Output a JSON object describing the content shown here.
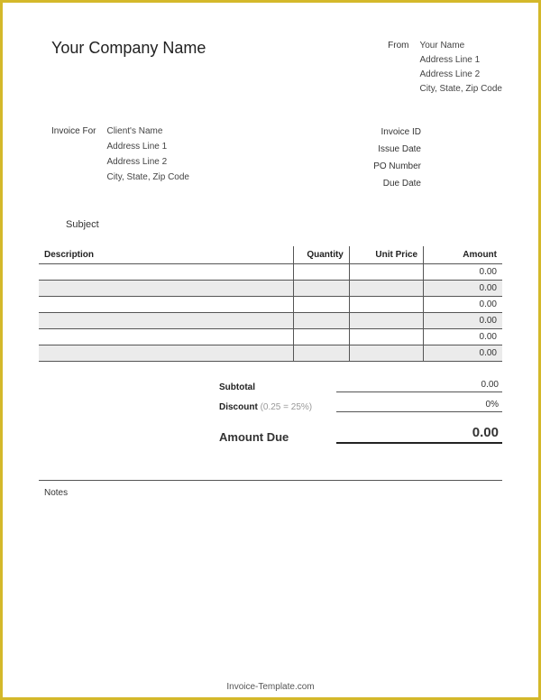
{
  "company_name": "Your Company Name",
  "from": {
    "label": "From",
    "lines": [
      "Your Name",
      "Address Line 1",
      "Address Line 2",
      "City, State, Zip Code"
    ]
  },
  "invoice_for": {
    "label": "Invoice For",
    "lines": [
      "Client's Name",
      "Address Line 1",
      "Address Line 2",
      "City, State, Zip Code"
    ]
  },
  "meta": {
    "invoice_id": "Invoice ID",
    "issue_date": "Issue Date",
    "po_number": "PO Number",
    "due_date": "Due Date"
  },
  "subject_label": "Subject",
  "table": {
    "columns": {
      "description": "Description",
      "quantity": "Quantity",
      "unit_price": "Unit Price",
      "amount": "Amount"
    },
    "rows": [
      {
        "amount": "0.00"
      },
      {
        "amount": "0.00"
      },
      {
        "amount": "0.00"
      },
      {
        "amount": "0.00"
      },
      {
        "amount": "0.00"
      },
      {
        "amount": "0.00"
      }
    ]
  },
  "totals": {
    "subtotal_label": "Subtotal",
    "subtotal_value": "0.00",
    "discount_label": "Discount",
    "discount_hint": "(0.25 = 25%)",
    "discount_value": "0%",
    "amount_due_label": "Amount Due",
    "amount_due_value": "0.00"
  },
  "notes_label": "Notes",
  "footer": "Invoice-Template.com",
  "styling": {
    "border_color": "#d4b82a",
    "row_shade_color": "#ebebeb",
    "text_color": "#333333",
    "line_color": "#555555",
    "background": "#ffffff",
    "company_name_fontsize": 18,
    "body_fontsize": 10,
    "amount_due_fontsize": 15,
    "font_family": "Arial"
  }
}
